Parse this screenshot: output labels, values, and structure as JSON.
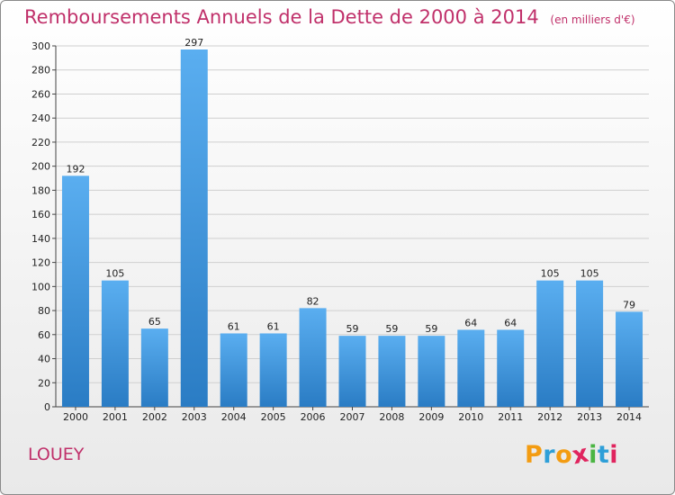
{
  "header": {
    "title": "Remboursements Annuels de la Dette de 2000 à 2014",
    "unit_note": "(en milliers d'€)"
  },
  "footer": {
    "town": "LOUEY",
    "logo_letters": [
      "P",
      "r",
      "o",
      "x",
      "i",
      "t",
      "i"
    ],
    "logo_colors": [
      "#f39c12",
      "#2e9fd8",
      "#f39c12",
      "#e0245e",
      "#4bb543",
      "#2e9fd8",
      "#e0245e"
    ]
  },
  "colors": {
    "title": "#c0306a",
    "bar_light": "#5aaef0",
    "bar_dark": "#2a7cc4",
    "grid": "#cfcfcf",
    "axis": "#444444"
  },
  "chart_data": {
    "type": "bar",
    "title": "Remboursements Annuels de la Dette de 2000 à 2014",
    "subtitle": "(en milliers d'€)",
    "xlabel": "",
    "ylabel": "",
    "categories": [
      "2000",
      "2001",
      "2002",
      "2003",
      "2004",
      "2005",
      "2006",
      "2007",
      "2008",
      "2009",
      "2010",
      "2011",
      "2012",
      "2013",
      "2014"
    ],
    "values": [
      192,
      105,
      65,
      297,
      61,
      61,
      82,
      59,
      59,
      59,
      64,
      64,
      105,
      105,
      79
    ],
    "ylim": [
      0,
      300
    ],
    "yticks": [
      0,
      20,
      40,
      60,
      80,
      100,
      120,
      140,
      160,
      180,
      200,
      220,
      240,
      260,
      280,
      300
    ],
    "grid": true,
    "legend": "none"
  }
}
